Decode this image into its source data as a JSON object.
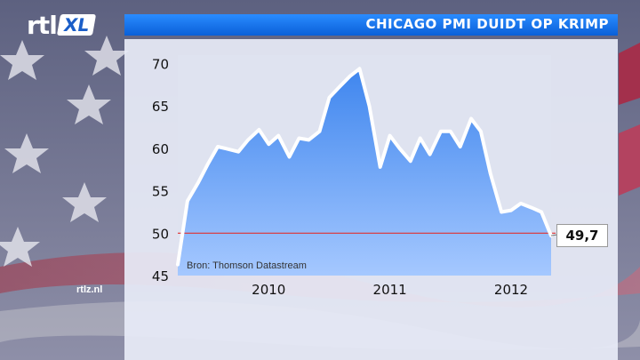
{
  "header": {
    "title": "CHICAGO PMI DUIDT OP KRIMP"
  },
  "logo": {
    "rtl": "rtl",
    "xl": "XL"
  },
  "footer": {
    "source": "Bron: Thomson Datastream",
    "site": "rtlz.nl"
  },
  "colors": {
    "title_bar": "#1a78f0",
    "area_top": "#3f86ee",
    "area_bottom": "#a5c8ff",
    "line": "#ffffff",
    "reference_line": "#e03030"
  },
  "chart_data": {
    "type": "area",
    "title": "CHICAGO PMI DUIDT OP KRIMP",
    "xlabel": "",
    "ylabel": "",
    "ylim": [
      45,
      71
    ],
    "yticks": [
      45,
      50,
      55,
      60,
      65,
      70
    ],
    "xticks": [
      {
        "label": "2010",
        "x": 2010.0
      },
      {
        "label": "2011",
        "x": 2011.0
      },
      {
        "label": "2012",
        "x": 2012.0
      }
    ],
    "xlim": [
      2009.25,
      2012.33
    ],
    "reference_line": 50,
    "last_value_label": "49,7",
    "series": [
      {
        "x": [
          2009.25,
          2009.33,
          2009.42,
          2009.5,
          2009.58,
          2009.67,
          2009.75,
          2009.83,
          2009.92,
          2010.0,
          2010.08,
          2010.17,
          2010.25,
          2010.33,
          2010.42,
          2010.5,
          2010.58,
          2010.67,
          2010.75,
          2010.83,
          2010.92,
          2011.0,
          2011.08,
          2011.17,
          2011.25,
          2011.33,
          2011.42,
          2011.5,
          2011.58,
          2011.67,
          2011.75,
          2011.83,
          2011.92,
          2012.0,
          2012.08,
          2012.17,
          2012.25,
          2012.33
        ],
        "y": [
          46.3,
          53.8,
          56.0,
          58.2,
          60.2,
          59.9,
          59.6,
          61.0,
          62.2,
          60.5,
          61.5,
          59.0,
          61.2,
          61.0,
          62.0,
          66.0,
          67.2,
          68.5,
          69.4,
          65.0,
          57.8,
          61.5,
          60.0,
          58.5,
          61.2,
          59.3,
          62.0,
          62.0,
          60.2,
          63.5,
          62.0,
          57.0,
          52.5,
          52.7,
          53.5,
          53.0,
          52.5,
          49.7
        ]
      }
    ]
  }
}
